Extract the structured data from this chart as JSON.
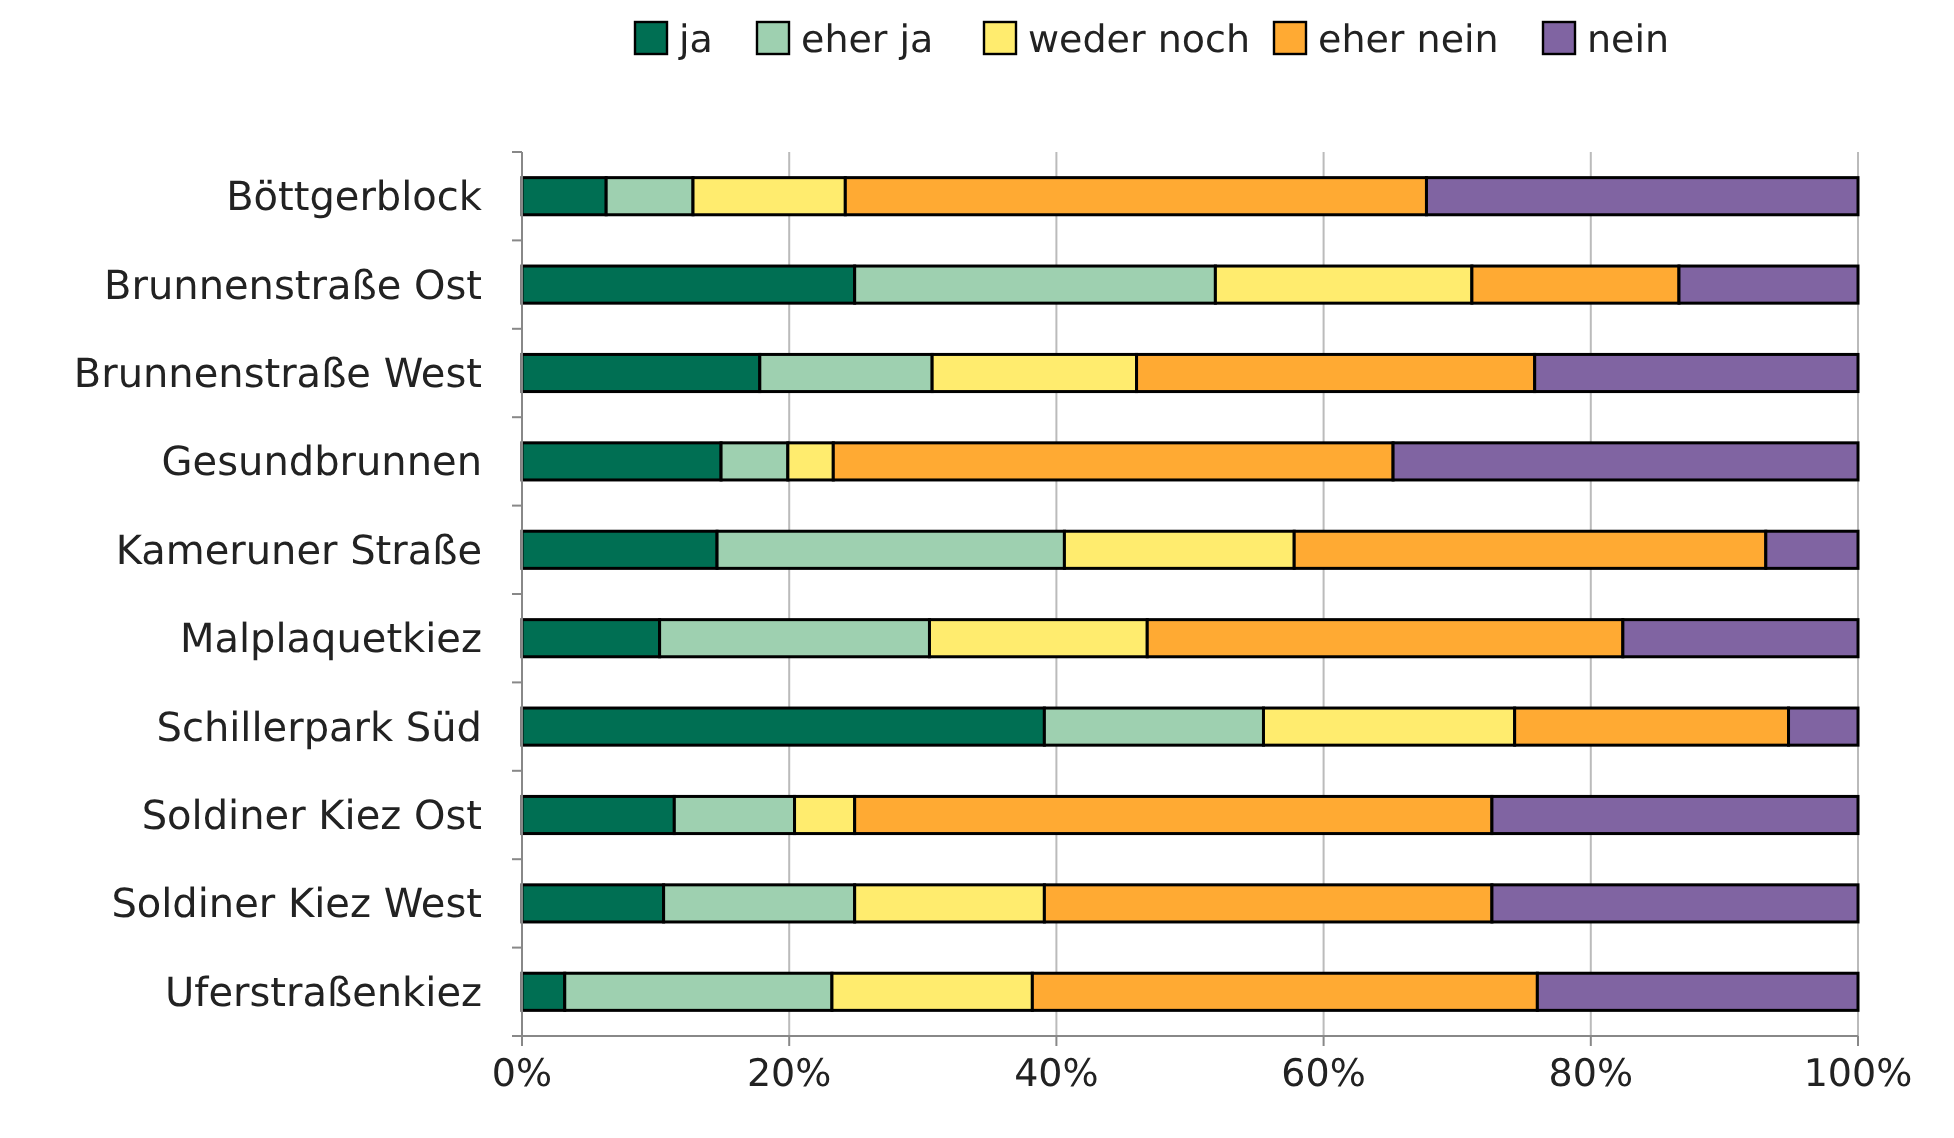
{
  "chart_data": {
    "type": "bar",
    "orientation": "horizontal",
    "stacked": true,
    "categories": [
      "Böttgerblock",
      "Brunnenstraße Ost",
      "Brunnenstraße West",
      "Gesundbrunnen",
      "Kameruner Straße",
      "Malplaquetkiez",
      "Schillerpark Süd",
      "Soldiner Kiez Ost",
      "Soldiner Kiez West",
      "Uferstraßenkiez"
    ],
    "series": [
      {
        "name": "ja",
        "color": "#006f53",
        "values": [
          6.3,
          24.9,
          17.8,
          14.9,
          14.6,
          10.3,
          39.1,
          11.4,
          10.6,
          3.2
        ]
      },
      {
        "name": "eher ja",
        "color": "#9ed0b0",
        "values": [
          6.5,
          27.0,
          12.9,
          5.0,
          26.0,
          20.2,
          16.4,
          9.0,
          14.3,
          20.0
        ]
      },
      {
        "name": "weder noch",
        "color": "#ffec6e",
        "values": [
          11.4,
          19.2,
          15.3,
          3.4,
          17.2,
          16.3,
          18.8,
          4.5,
          14.2,
          15.0
        ]
      },
      {
        "name": "eher nein",
        "color": "#ffaa33",
        "values": [
          43.5,
          15.5,
          29.8,
          41.9,
          35.3,
          35.6,
          20.5,
          47.7,
          33.5,
          37.8
        ]
      },
      {
        "name": "nein",
        "color": "#8064a2",
        "values": [
          32.3,
          13.4,
          24.2,
          34.8,
          6.9,
          17.6,
          5.2,
          27.4,
          27.4,
          24.0
        ]
      }
    ],
    "xlim": [
      0,
      100
    ],
    "xticks": [
      {
        "value": 0,
        "label": "0%"
      },
      {
        "value": 20,
        "label": "20%"
      },
      {
        "value": 40,
        "label": "40%"
      },
      {
        "value": 60,
        "label": "60%"
      },
      {
        "value": 80,
        "label": "80%"
      },
      {
        "value": 100,
        "label": "100%"
      }
    ],
    "grid": "x",
    "legend": "top"
  }
}
